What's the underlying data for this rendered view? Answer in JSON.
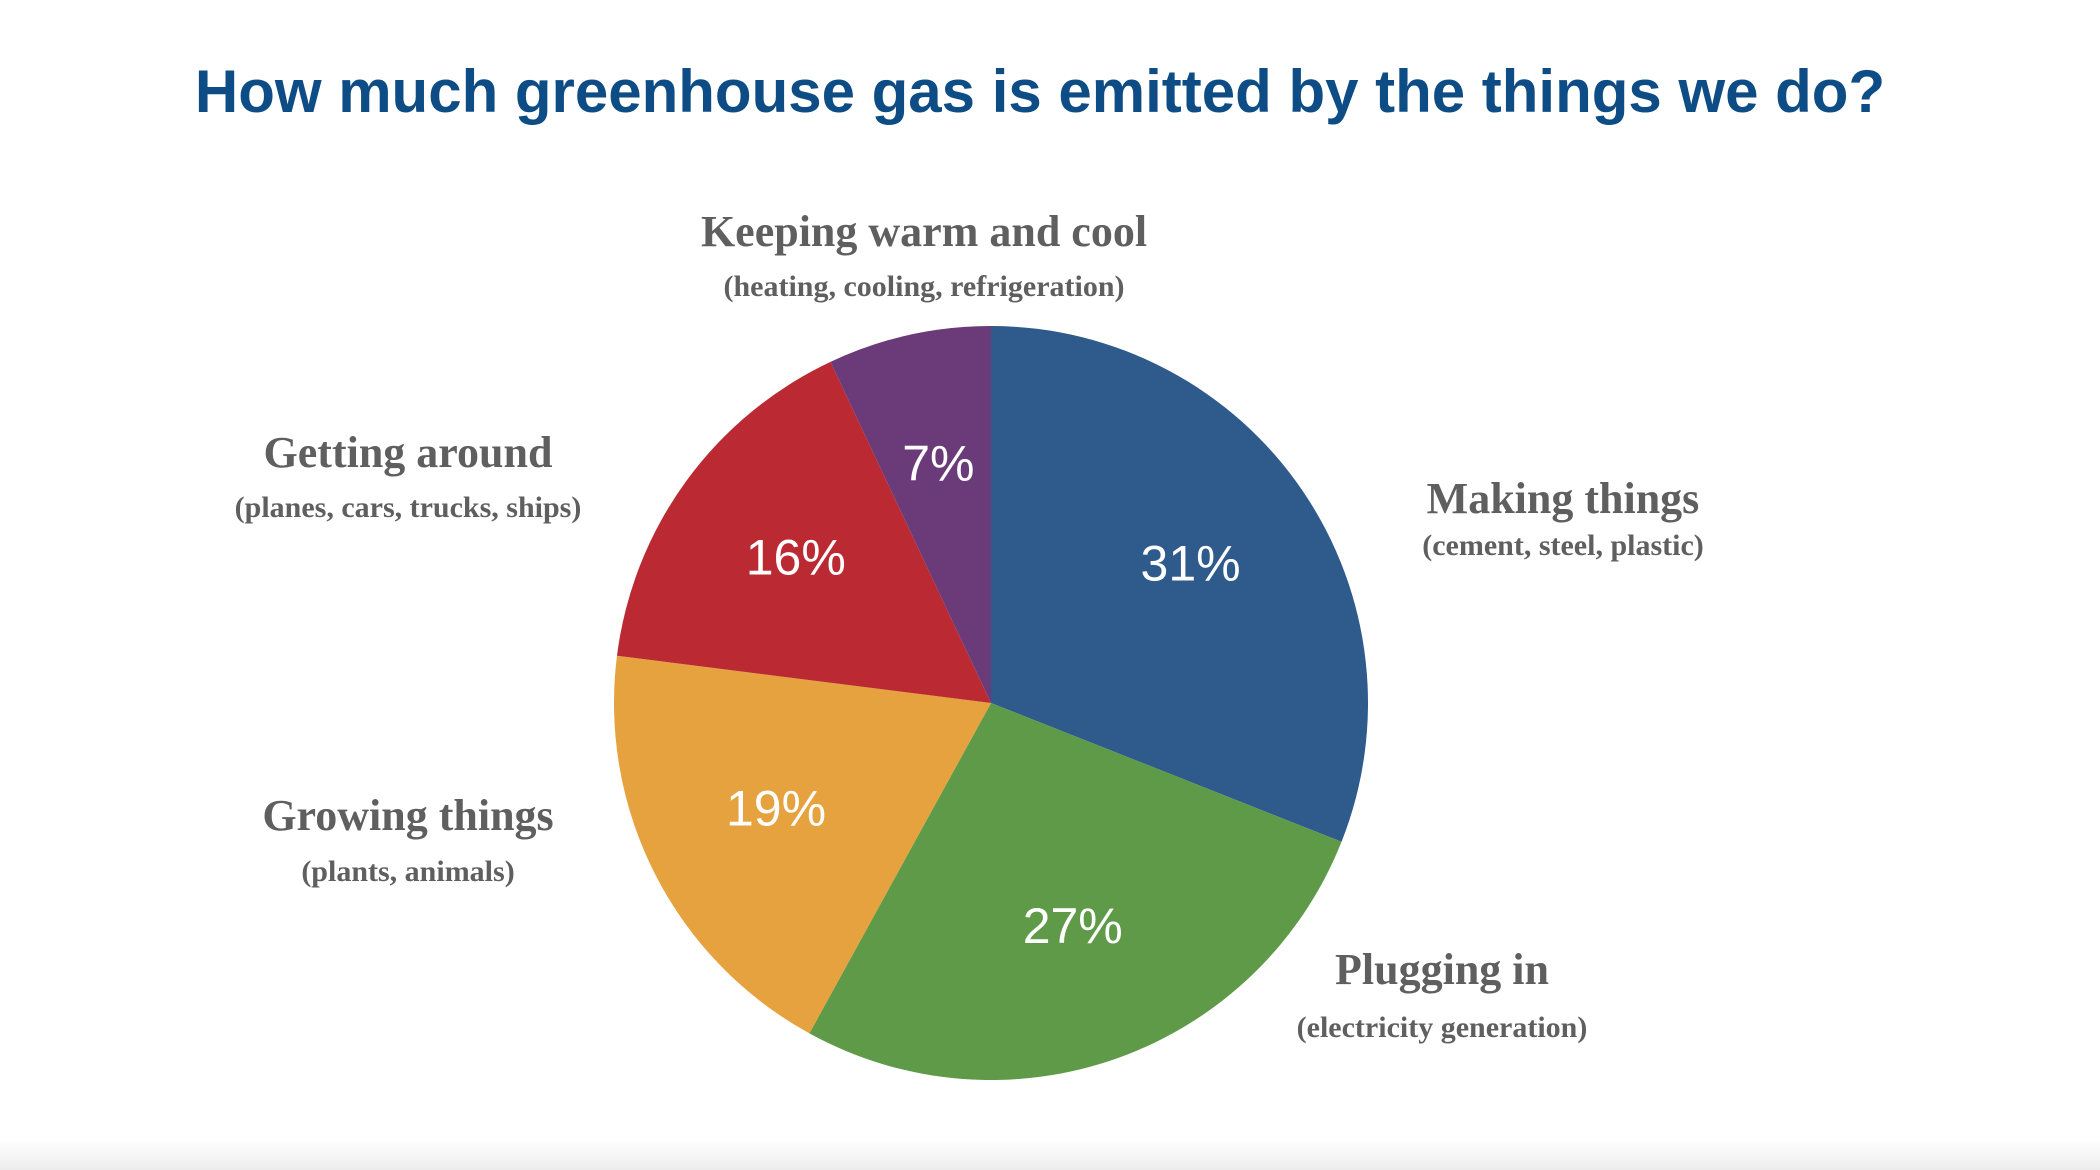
{
  "chart_data": {
    "type": "pie",
    "title": "How much greenhouse gas is emitted by the things we do?",
    "categories": [
      "Making things",
      "Plugging in",
      "Growing things",
      "Getting around",
      "Keeping warm and cool"
    ],
    "descriptions": [
      "(cement, steel, plastic)",
      "(electricity generation)",
      "(plants, animals)",
      "(planes, cars, trucks, ships)",
      "(heating, cooling, refrigeration)"
    ],
    "values": [
      31,
      27,
      19,
      16,
      7
    ],
    "value_labels": [
      "31%",
      "27%",
      "19%",
      "16%",
      "7%"
    ],
    "colors": [
      "#2e5a8c",
      "#5e9a48",
      "#e6a23e",
      "#bb2a33",
      "#6b3a78"
    ]
  }
}
